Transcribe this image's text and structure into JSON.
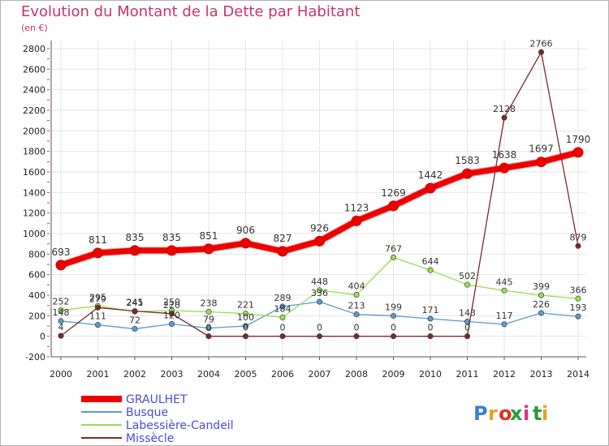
{
  "title": "Evolution du Montant de la Dette par Habitant",
  "subtitle": "(en €)",
  "logo": {
    "text": "Proxiti",
    "letter_colors": [
      "#3a7fd0",
      "#e8a020",
      "#e03020",
      "#2a9a3a",
      "#e03080",
      "#2a9a3a",
      "#e8a020"
    ]
  },
  "chart_data": {
    "type": "line",
    "x": [
      2000,
      2001,
      2002,
      2003,
      2004,
      2005,
      2006,
      2007,
      2008,
      2009,
      2010,
      2011,
      2012,
      2013,
      2014
    ],
    "ylim": [
      -200,
      2800
    ],
    "yticks": [
      -200,
      0,
      200,
      400,
      600,
      800,
      1000,
      1200,
      1400,
      1600,
      1800,
      2000,
      2200,
      2400,
      2600,
      2800
    ],
    "grid": true,
    "legend_position": "bottom-left",
    "series": [
      {
        "name": "Busque",
        "color": "#5b9bd0",
        "values": [
          148,
          111,
          72,
          120,
          79,
          100,
          289,
          336,
          213,
          199,
          171,
          143,
          117,
          226,
          193
        ]
      },
      {
        "name": "Labessière-Candeil",
        "color": "#99dd55",
        "values": [
          252,
          295,
          241,
          250,
          238,
          221,
          184,
          448,
          404,
          767,
          644,
          502,
          445,
          399,
          366
        ]
      },
      {
        "name": "Missècle",
        "color": "#7a2a2a",
        "values": [
          4,
          279,
          245,
          220,
          0,
          0,
          0,
          0,
          0,
          0,
          0,
          0,
          2128,
          2766,
          879
        ]
      },
      {
        "name": "GRAULHET",
        "color": "#ee0000",
        "values": [
          693,
          811,
          835,
          835,
          851,
          906,
          827,
          926,
          1123,
          1269,
          1442,
          1583,
          1638,
          1697,
          1790
        ]
      }
    ]
  }
}
